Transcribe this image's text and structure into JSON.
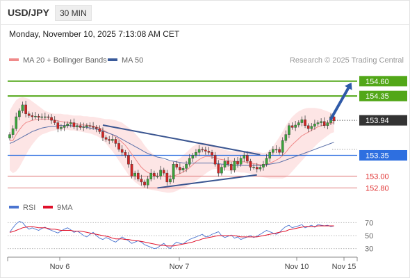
{
  "header": {
    "symbol": "USD/JPY",
    "timeframe": "30 MIN",
    "datetime": "Monday, November 10, 2025 7:13:08 AM CET"
  },
  "legend": {
    "items": [
      {
        "label": "MA 20 + Bollinger Bands",
        "color": "#f08a8a"
      },
      {
        "label": "MA 50",
        "color": "#3a5a9a"
      }
    ],
    "credit": "Research © 2025 Trading Central"
  },
  "rsi_legend": {
    "items": [
      {
        "label": "RSI",
        "color": "#4a74d0"
      },
      {
        "label": "9MA",
        "color": "#e0102a"
      }
    ]
  },
  "colors": {
    "up_candle": "#3aa53a",
    "down_candle": "#d22424",
    "resistance": "#52a718",
    "support": "#2e6fe0",
    "level_red": "#e07a7a",
    "trendline": "#3a5590",
    "arrow": "#2f5aa8",
    "band_fill": "#fde0e0",
    "ma20": "#f08a8a",
    "ma50": "#5a6fa8",
    "current_badge": "#333333"
  },
  "chart_data": {
    "type": "candlestick",
    "ylim": [
      152.6,
      154.75
    ],
    "levels": [
      {
        "value": 154.6,
        "label": "154.60",
        "kind": "resistance"
      },
      {
        "value": 154.35,
        "label": "154.35",
        "kind": "resistance"
      },
      {
        "value": 153.94,
        "label": "153.94",
        "kind": "current"
      },
      {
        "value": 153.35,
        "label": "153.35",
        "kind": "support"
      },
      {
        "value": 153.0,
        "label": "153.00",
        "kind": "minor"
      },
      {
        "value": 152.8,
        "label": "152.80",
        "kind": "minor"
      }
    ],
    "x_ticks": [
      "Nov 6",
      "Nov 7",
      "Nov 10",
      "Nov 15"
    ],
    "closes": [
      153.7,
      153.8,
      154.0,
      154.1,
      154.2,
      154.05,
      154.02,
      154.0,
      154.01,
      153.99,
      154.0,
      154.0,
      153.99,
      153.94,
      153.9,
      153.8,
      153.82,
      153.85,
      153.88,
      153.9,
      153.83,
      153.85,
      153.82,
      153.83,
      153.85,
      153.84,
      153.82,
      153.8,
      153.75,
      153.65,
      153.62,
      153.6,
      153.62,
      153.55,
      153.45,
      153.4,
      153.35,
      153.2,
      153.0,
      153.05,
      152.95,
      152.9,
      152.85,
      152.95,
      153.05,
      153.0,
      153.0,
      153.1,
      153.05,
      152.9,
      152.95,
      153.2,
      153.15,
      153.1,
      153.13,
      153.2,
      153.3,
      153.35,
      153.4,
      153.45,
      153.44,
      153.42,
      153.4,
      153.35,
      153.2,
      153.05,
      153.15,
      153.25,
      153.2,
      153.1,
      153.25,
      153.2,
      153.3,
      153.35,
      153.25,
      153.15,
      153.15,
      153.12,
      153.15,
      153.2,
      153.3,
      153.4,
      153.45,
      153.45,
      153.4,
      153.6,
      153.7,
      153.85,
      153.82,
      153.86,
      153.9,
      153.95,
      153.85,
      153.8,
      153.84,
      153.88,
      153.9,
      153.92,
      153.85,
      153.9,
      154.0,
      153.93
    ],
    "ma20": [
      153.6,
      153.6,
      153.7,
      153.78,
      153.85,
      153.9,
      153.92,
      153.94,
      153.95,
      153.96,
      153.96,
      153.96,
      153.96,
      153.96,
      153.95,
      153.93,
      153.92,
      153.91,
      153.91,
      153.9,
      153.89,
      153.88,
      153.87,
      153.86,
      153.86,
      153.85,
      153.84,
      153.83,
      153.81,
      153.78,
      153.75,
      153.72,
      153.7,
      153.66,
      153.62,
      153.57,
      153.52,
      153.45,
      153.37,
      153.3,
      153.22,
      153.15,
      153.1,
      153.06,
      153.04,
      153.02,
      153.0,
      153.0,
      153.0,
      152.99,
      152.99,
      153.0,
      153.02,
      153.04,
      153.07,
      153.1,
      153.14,
      153.19,
      153.24,
      153.28,
      153.31,
      153.33,
      153.33,
      153.32,
      153.31,
      153.29,
      153.28,
      153.27,
      153.26,
      153.25,
      153.25,
      153.24,
      153.24,
      153.24,
      153.23,
      153.22,
      153.21,
      153.2,
      153.19,
      153.19,
      153.2,
      153.22,
      153.24,
      153.27,
      153.3,
      153.35,
      153.4,
      153.47,
      153.53,
      153.58,
      153.63,
      153.68,
      153.71,
      153.74,
      153.77,
      153.8,
      153.83,
      153.85,
      153.86,
      153.88,
      153.89,
      153.9
    ],
    "ma50": [
      153.55,
      153.57,
      153.6,
      153.63,
      153.66,
      153.69,
      153.72,
      153.75,
      153.77,
      153.79,
      153.81,
      153.82,
      153.83,
      153.84,
      153.84,
      153.85,
      153.85,
      153.85,
      153.85,
      153.85,
      153.84,
      153.84,
      153.83,
      153.83,
      153.82,
      153.81,
      153.8,
      153.79,
      153.78,
      153.76,
      153.74,
      153.72,
      153.7,
      153.68,
      153.65,
      153.62,
      153.59,
      153.56,
      153.53,
      153.5,
      153.47,
      153.44,
      153.41,
      153.38,
      153.36,
      153.34,
      153.32,
      153.31,
      153.3,
      153.28,
      153.26,
      153.25,
      153.24,
      153.23,
      153.22,
      153.22,
      153.22,
      153.22,
      153.22,
      153.22,
      153.22,
      153.22,
      153.22,
      153.22,
      153.21,
      153.21,
      153.2,
      153.2,
      153.19,
      153.18,
      153.18,
      153.18,
      153.18,
      153.18,
      153.18,
      153.18,
      153.18,
      153.18,
      153.18,
      153.18,
      153.19,
      153.2,
      153.21,
      153.22,
      153.23,
      153.25,
      153.27,
      153.29,
      153.31,
      153.33,
      153.35,
      153.37,
      153.39,
      153.41,
      153.43,
      153.45,
      153.47,
      153.49,
      153.51,
      153.53,
      153.55,
      153.57
    ],
    "band_upper": [
      154.1,
      154.2,
      154.28,
      154.32,
      154.33,
      154.32,
      154.3,
      154.26,
      154.22,
      154.18,
      154.14,
      154.1,
      154.08,
      154.06,
      154.05,
      154.05,
      154.05,
      154.04,
      154.04,
      154.03,
      154.02,
      154.02,
      154.02,
      154.01,
      154.01,
      154.0,
      154.0,
      153.99,
      153.98,
      153.97,
      153.96,
      153.96,
      153.95,
      153.94,
      153.92,
      153.9,
      153.86,
      153.82,
      153.78,
      153.72,
      153.66,
      153.6,
      153.52,
      153.45,
      153.4,
      153.36,
      153.32,
      153.3,
      153.28,
      153.26,
      153.26,
      153.26,
      153.27,
      153.3,
      153.35,
      153.4,
      153.45,
      153.5,
      153.53,
      153.55,
      153.56,
      153.56,
      153.55,
      153.53,
      153.5,
      153.48,
      153.46,
      153.44,
      153.43,
      153.42,
      153.42,
      153.42,
      153.42,
      153.42,
      153.42,
      153.42,
      153.42,
      153.41,
      153.4,
      153.39,
      153.4,
      153.44,
      153.5,
      153.58,
      153.66,
      153.75,
      153.85,
      153.93,
      154.0,
      154.05,
      154.09,
      154.12,
      154.14,
      154.15,
      154.15,
      154.15,
      154.14,
      154.13,
      154.11,
      154.09,
      154.07,
      154.05
    ],
    "band_lower": [
      153.1,
      153.05,
      153.08,
      153.15,
      153.25,
      153.35,
      153.45,
      153.53,
      153.6,
      153.66,
      153.7,
      153.72,
      153.74,
      153.76,
      153.77,
      153.78,
      153.78,
      153.78,
      153.78,
      153.77,
      153.77,
      153.76,
      153.75,
      153.74,
      153.73,
      153.72,
      153.7,
      153.68,
      153.65,
      153.6,
      153.55,
      153.48,
      153.42,
      153.34,
      153.26,
      153.18,
      153.1,
      153.02,
      152.96,
      152.9,
      152.86,
      152.82,
      152.8,
      152.78,
      152.77,
      152.76,
      152.75,
      152.74,
      152.73,
      152.72,
      152.72,
      152.73,
      152.75,
      152.78,
      152.8,
      152.82,
      152.85,
      152.88,
      152.92,
      152.96,
      153.0,
      153.04,
      153.08,
      153.11,
      153.12,
      153.12,
      153.11,
      153.1,
      153.09,
      153.08,
      153.07,
      153.07,
      153.06,
      153.06,
      153.05,
      153.04,
      153.02,
      153.0,
      152.99,
      152.98,
      152.97,
      152.96,
      152.96,
      152.96,
      152.96,
      152.96,
      152.98,
      153.02,
      153.08,
      153.14,
      153.2,
      153.26,
      153.32,
      153.38,
      153.44,
      153.5,
      153.55,
      153.6,
      153.64,
      153.68,
      153.72,
      153.74
    ],
    "trendlines": [
      {
        "from": [
          29,
          153.86
        ],
        "to": [
          78,
          153.36
        ]
      },
      {
        "from": [
          46,
          152.8
        ],
        "to": [
          77,
          153.02
        ]
      }
    ],
    "forecast_arrow": {
      "from": [
        100,
        153.96
      ],
      "to": [
        106,
        154.6
      ]
    },
    "rsi": {
      "ylim": [
        20,
        80
      ],
      "levels": [
        70,
        50,
        30
      ],
      "values": [
        55,
        62,
        68,
        72,
        70,
        64,
        60,
        62,
        60,
        58,
        61,
        63,
        60,
        58,
        56,
        54,
        57,
        60,
        62,
        59,
        55,
        57,
        54,
        50,
        48,
        52,
        55,
        50,
        46,
        44,
        47,
        45,
        42,
        40,
        44,
        48,
        45,
        42,
        38,
        40,
        42,
        40,
        36,
        34,
        32,
        30,
        31,
        35,
        38,
        33,
        30,
        36,
        40,
        38,
        37,
        41,
        44,
        46,
        48,
        50,
        52,
        48,
        49,
        52,
        54,
        56,
        50,
        47,
        49,
        51,
        46,
        48,
        44,
        46,
        48,
        50,
        47,
        49,
        52,
        55,
        58,
        56,
        54,
        52,
        55,
        60,
        64,
        66,
        62,
        64,
        65,
        67,
        62,
        64,
        66,
        63,
        67,
        66,
        65,
        66,
        64,
        65
      ],
      "ma9": [
        55,
        56,
        58,
        60,
        62,
        63,
        64,
        64,
        63,
        62,
        62,
        62,
        61,
        60,
        60,
        59,
        58,
        58,
        58,
        58,
        57,
        57,
        57,
        56,
        55,
        54,
        53,
        52,
        51,
        50,
        49,
        48,
        46,
        45,
        45,
        45,
        44,
        44,
        43,
        42,
        42,
        41,
        40,
        39,
        38,
        37,
        36,
        35,
        35,
        34,
        34,
        34,
        35,
        36,
        37,
        38,
        39,
        40,
        42,
        43,
        45,
        46,
        47,
        48,
        49,
        50,
        50,
        50,
        50,
        50,
        50,
        49,
        48,
        48,
        48,
        48,
        48,
        48,
        49,
        50,
        51,
        52,
        53,
        54,
        55,
        56,
        57,
        59,
        60,
        61,
        62,
        63,
        64,
        64,
        64,
        64,
        65,
        65,
        65,
        65,
        65,
        65
      ]
    }
  }
}
